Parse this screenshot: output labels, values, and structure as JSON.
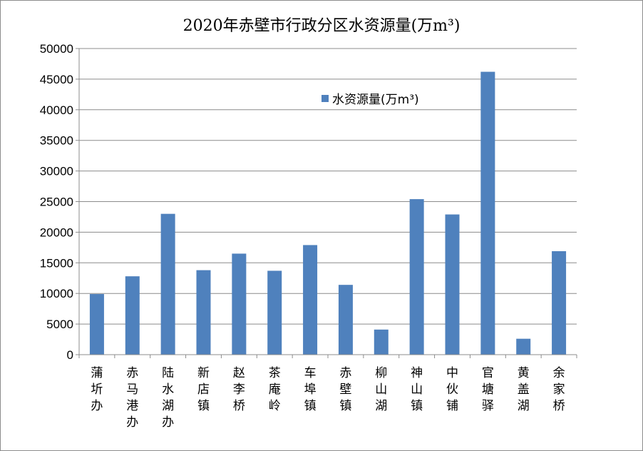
{
  "chart_data": {
    "type": "bar",
    "title": "2020年赤壁市行政分区水资源量(万m³)",
    "categories": [
      "蒲圻办",
      "赤马港办",
      "陆水湖办",
      "新店镇",
      "赵李桥",
      "茶庵岭",
      "车埠镇",
      "赤壁镇",
      "柳山湖",
      "神山镇",
      "中伙铺",
      "官塘驿",
      "黄盖湖",
      "余家桥"
    ],
    "series": [
      {
        "name": "水资源量(万m³)",
        "color": "#4f81bd",
        "values": [
          9900,
          12800,
          23000,
          13800,
          16500,
          13700,
          17900,
          11400,
          4100,
          25400,
          22900,
          46200,
          2600,
          16900
        ]
      }
    ],
    "yticks": [
      "0",
      "5000",
      "10000",
      "15000",
      "20000",
      "25000",
      "30000",
      "35000",
      "40000",
      "45000",
      "50000"
    ],
    "ylim": [
      0,
      50000
    ],
    "xlabel": "",
    "ylabel": "",
    "grid": true,
    "legend": "top-right"
  }
}
